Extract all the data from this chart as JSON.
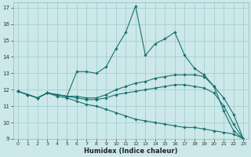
{
  "xlabel": "Humidex (Indice chaleur)",
  "bg_color": "#cce8e8",
  "line_color": "#1a7070",
  "grid_color": "#99cccc",
  "xlim": [
    -0.5,
    23.5
  ],
  "ylim": [
    9,
    17.3
  ],
  "xticks": [
    0,
    1,
    2,
    3,
    4,
    5,
    6,
    7,
    8,
    9,
    10,
    11,
    12,
    13,
    14,
    15,
    16,
    17,
    18,
    19,
    20,
    21,
    22,
    23
  ],
  "yticks": [
    9,
    10,
    11,
    12,
    13,
    14,
    15,
    16,
    17
  ],
  "line1_x": [
    0,
    1,
    2,
    3,
    4,
    5,
    6,
    7,
    8,
    9,
    10,
    11,
    12,
    13,
    14,
    15,
    16,
    17,
    18,
    19,
    20,
    21,
    22,
    23
  ],
  "line1_y": [
    11.9,
    11.7,
    11.5,
    11.8,
    11.7,
    11.6,
    13.1,
    13.1,
    13.0,
    13.4,
    14.5,
    15.5,
    17.1,
    14.1,
    14.8,
    15.1,
    15.5,
    14.1,
    13.3,
    12.9,
    12.2,
    10.7,
    9.5,
    9.0
  ],
  "line2_x": [
    0,
    1,
    2,
    3,
    4,
    5,
    6,
    7,
    8,
    9,
    10,
    11,
    12,
    13,
    14,
    15,
    16,
    17,
    18,
    19,
    20,
    21,
    22,
    23
  ],
  "line2_y": [
    11.9,
    11.7,
    11.5,
    11.8,
    11.7,
    11.6,
    11.6,
    11.5,
    11.5,
    11.7,
    12.0,
    12.2,
    12.4,
    12.5,
    12.7,
    12.8,
    12.9,
    12.9,
    12.9,
    12.8,
    12.2,
    11.5,
    10.5,
    9.0
  ],
  "line3_x": [
    0,
    1,
    2,
    3,
    4,
    5,
    6,
    7,
    8,
    9,
    10,
    11,
    12,
    13,
    14,
    15,
    16,
    17,
    18,
    19,
    20,
    21,
    22,
    23
  ],
  "line3_y": [
    11.9,
    11.7,
    11.5,
    11.8,
    11.7,
    11.6,
    11.5,
    11.4,
    11.4,
    11.5,
    11.7,
    11.8,
    11.9,
    12.0,
    12.1,
    12.2,
    12.3,
    12.3,
    12.2,
    12.1,
    11.8,
    11.0,
    9.9,
    9.0
  ],
  "line4_x": [
    0,
    1,
    2,
    3,
    4,
    5,
    6,
    7,
    8,
    9,
    10,
    11,
    12,
    13,
    14,
    15,
    16,
    17,
    18,
    19,
    20,
    21,
    22,
    23
  ],
  "line4_y": [
    11.9,
    11.7,
    11.5,
    11.8,
    11.6,
    11.5,
    11.3,
    11.1,
    11.0,
    10.8,
    10.6,
    10.4,
    10.2,
    10.1,
    10.0,
    9.9,
    9.8,
    9.7,
    9.7,
    9.6,
    9.5,
    9.4,
    9.3,
    9.0
  ]
}
